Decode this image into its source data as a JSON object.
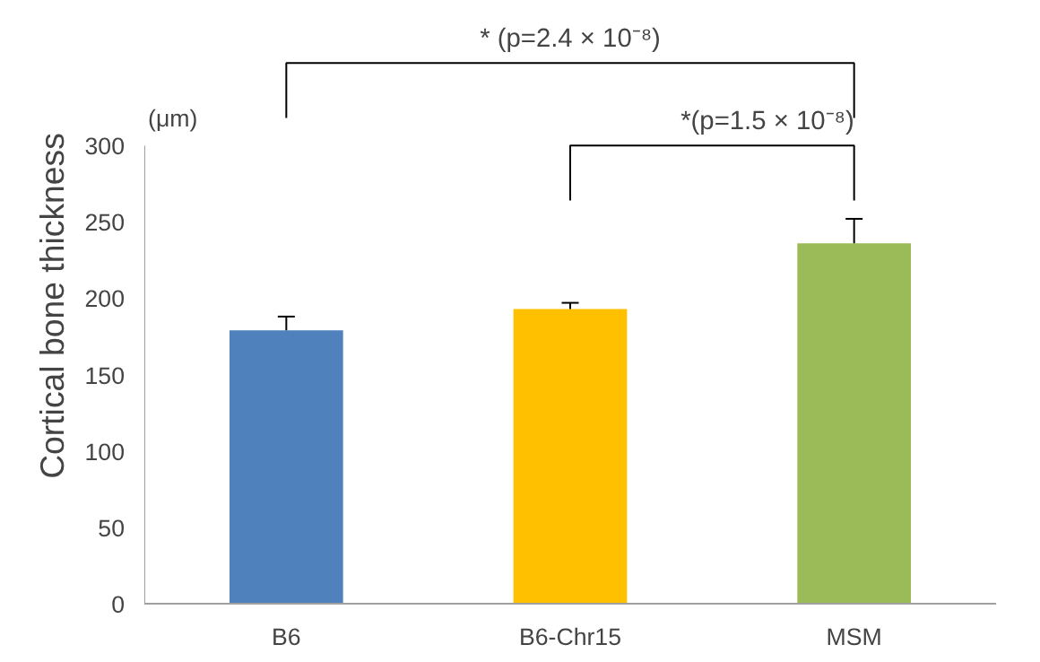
{
  "chart_data": {
    "type": "bar",
    "ylabel": "Cortical bone thickness",
    "categories": [
      "B6",
      "B6-Chr15",
      "MSM"
    ],
    "values": [
      179,
      193,
      236
    ],
    "errors": [
      9,
      4,
      16
    ],
    "colors": [
      "#4f81bd",
      "#ffc000",
      "#9bbb59"
    ],
    "ylim": [
      0,
      300
    ],
    "yticks": [
      0,
      50,
      100,
      150,
      200,
      250,
      300
    ],
    "grid": false,
    "annotations": [
      "(μm)",
      "* (p=2.4 × 10⁻⁸)",
      "*(p=1.5 × 10⁻⁸)"
    ]
  }
}
